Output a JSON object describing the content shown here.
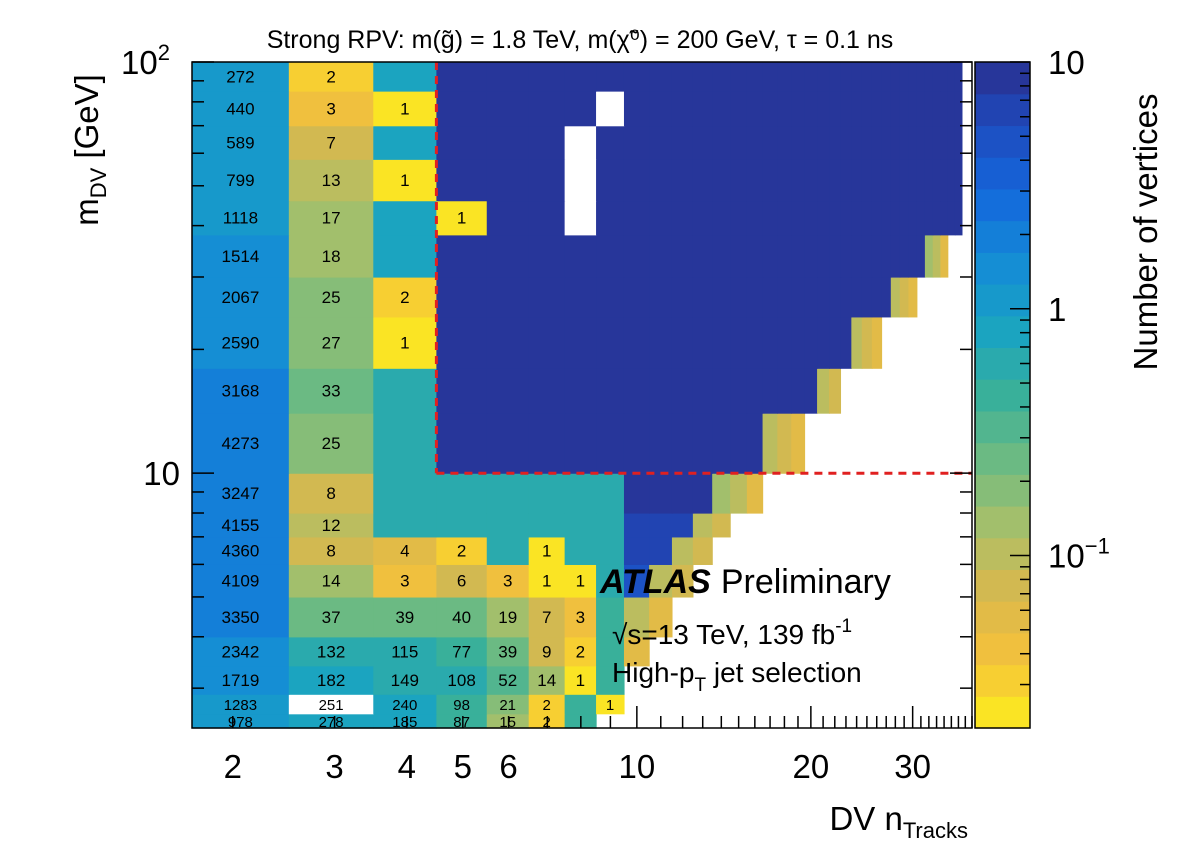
{
  "chart_data": {
    "type": "heatmap",
    "title": "Strong RPV: m(g̃) = 1.8 TeV, m(χ̃⁰) = 200 GeV, τ = 0.1 ns",
    "xlabel": "DV n",
    "xlabel_sub": "Tracks",
    "ylabel": "m",
    "ylabel_sub": "DV",
    "ylabel_unit": " [GeV]",
    "x_scale": "log",
    "y_scale": "log",
    "xlim": [
      1.7,
      38
    ],
    "ylim": [
      2.4,
      100
    ],
    "x_ticks": [
      {
        "value": 2,
        "label": "2"
      },
      {
        "value": 3,
        "label": "3"
      },
      {
        "value": 4,
        "label": "4"
      },
      {
        "value": 5,
        "label": "5"
      },
      {
        "value": 6,
        "label": "6"
      },
      {
        "value": 10,
        "label": "10"
      },
      {
        "value": 20,
        "label": "20"
      },
      {
        "value": 30,
        "label": "30"
      }
    ],
    "y_ticks": [
      {
        "value": 10,
        "base": "10",
        "exp": ""
      },
      {
        "value": 100,
        "base": "10",
        "exp": "2"
      }
    ],
    "colorbar": {
      "label": "Number of vertices",
      "range": [
        0.02,
        10
      ],
      "ticks": [
        {
          "value": 10,
          "base": "10",
          "exp": ""
        },
        {
          "value": 1,
          "base": "1",
          "exp": ""
        },
        {
          "value": 0.1,
          "base": "10",
          "exp": "−1"
        }
      ]
    },
    "signal_region": {
      "x_min": 5,
      "y_min": 10,
      "color": "#e02020"
    },
    "cells_low_ntrk": {
      "columns": [
        2,
        3,
        4,
        5,
        6,
        7,
        8,
        9
      ],
      "rows": [
        {
          "m": "lt100",
          "counts": [
            272,
            2,
            null,
            null,
            null,
            null,
            null,
            null
          ]
        },
        {
          "m": "lt85",
          "counts": [
            440,
            3,
            1,
            null,
            null,
            null,
            null,
            null
          ]
        },
        {
          "m": "lt70",
          "counts": [
            589,
            7,
            null,
            null,
            null,
            null,
            null,
            null
          ]
        },
        {
          "m": "lt58",
          "counts": [
            799,
            13,
            1,
            null,
            null,
            null,
            null,
            null
          ]
        },
        {
          "m": "lt46",
          "counts": [
            1118,
            17,
            null,
            1,
            null,
            null,
            null,
            null
          ]
        },
        {
          "m": "lt38",
          "counts": [
            1514,
            18,
            null,
            null,
            null,
            null,
            null,
            null
          ]
        },
        {
          "m": "lt30",
          "counts": [
            2067,
            25,
            2,
            null,
            null,
            null,
            null,
            null
          ]
        },
        {
          "m": "lt24",
          "counts": [
            2590,
            27,
            1,
            null,
            null,
            null,
            null,
            null
          ]
        },
        {
          "m": "lt18",
          "counts": [
            3168,
            33,
            null,
            null,
            null,
            null,
            null,
            null
          ]
        },
        {
          "m": "lt14",
          "counts": [
            4273,
            25,
            null,
            null,
            null,
            null,
            null,
            null
          ]
        },
        {
          "m": "lt10",
          "counts": [
            3247,
            8,
            null,
            null,
            null,
            null,
            null,
            null
          ]
        },
        {
          "m": "lt8",
          "counts": [
            4155,
            12,
            null,
            null,
            null,
            null,
            null,
            null
          ]
        },
        {
          "m": "lt7",
          "counts": [
            4360,
            8,
            4,
            2,
            null,
            1,
            null,
            null
          ]
        },
        {
          "m": "lt6",
          "counts": [
            4109,
            14,
            3,
            6,
            3,
            1,
            1,
            null
          ]
        },
        {
          "m": "lt5",
          "counts": [
            3350,
            37,
            39,
            40,
            19,
            7,
            3,
            null
          ]
        },
        {
          "m": "lt4",
          "counts": [
            2342,
            132,
            115,
            77,
            39,
            9,
            2,
            null
          ]
        },
        {
          "m": "lt3.4",
          "counts": [
            1719,
            182,
            149,
            108,
            52,
            14,
            1,
            null
          ]
        },
        {
          "m": "lt2.9",
          "counts": [
            1283,
            251,
            240,
            98,
            21,
            2,
            null,
            1
          ]
        },
        {
          "m": "lt2.6",
          "counts": [
            978,
            278,
            185,
            87,
            15,
            2,
            null,
            null
          ]
        }
      ]
    }
  },
  "annotations": {
    "experiment": "ATLAS",
    "status": "Preliminary",
    "energy_prefix": "√s=13 TeV, 139 fb",
    "energy_exp": "-1",
    "selection_prefix": "High-p",
    "selection_sub": "T",
    "selection_suffix": " jet selection"
  }
}
